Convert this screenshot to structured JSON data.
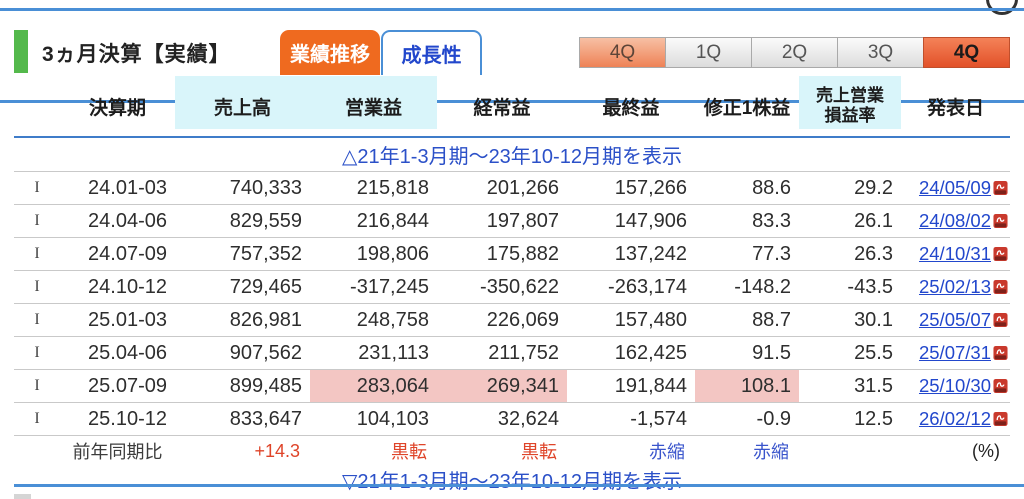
{
  "header": {
    "title": "3ヵ月決算【実績】",
    "tabs": [
      {
        "label": "業績推移",
        "active": true
      },
      {
        "label": "成長性",
        "active": false
      }
    ],
    "quarter_buttons": [
      {
        "label": "4Q",
        "state": "highlight"
      },
      {
        "label": "1Q",
        "state": "normal"
      },
      {
        "label": "2Q",
        "state": "normal"
      },
      {
        "label": "3Q",
        "state": "normal"
      },
      {
        "label": "4Q",
        "state": "selected"
      }
    ]
  },
  "table": {
    "columns": [
      "決算期",
      "売上高",
      "営業益",
      "経常益",
      "最終益",
      "修正1株益",
      "売上営業損益率",
      "発表日"
    ],
    "range_toggle_top": "△21年1-3月期〜23年10-12月期を表示",
    "range_toggle_bottom": "▽21年1-3月期〜23年10-12月期を表示",
    "rows": [
      {
        "marker": "I",
        "period": "24.01-03",
        "sales": "740,333",
        "op": "215,818",
        "ord": "201,266",
        "net": "157,266",
        "eps": "88.6",
        "margin": "29.2",
        "date": "24/05/09",
        "highlight": []
      },
      {
        "marker": "I",
        "period": "24.04-06",
        "sales": "829,559",
        "op": "216,844",
        "ord": "197,807",
        "net": "147,906",
        "eps": "83.3",
        "margin": "26.1",
        "date": "24/08/02",
        "highlight": []
      },
      {
        "marker": "I",
        "period": "24.07-09",
        "sales": "757,352",
        "op": "198,806",
        "ord": "175,882",
        "net": "137,242",
        "eps": "77.3",
        "margin": "26.3",
        "date": "24/10/31",
        "highlight": []
      },
      {
        "marker": "I",
        "period": "24.10-12",
        "sales": "729,465",
        "op": "-317,245",
        "ord": "-350,622",
        "net": "-263,174",
        "eps": "-148.2",
        "margin": "-43.5",
        "date": "25/02/13",
        "highlight": []
      },
      {
        "marker": "I",
        "period": "25.01-03",
        "sales": "826,981",
        "op": "248,758",
        "ord": "226,069",
        "net": "157,480",
        "eps": "88.7",
        "margin": "30.1",
        "date": "25/05/07",
        "highlight": []
      },
      {
        "marker": "I",
        "period": "25.04-06",
        "sales": "907,562",
        "op": "231,113",
        "ord": "211,752",
        "net": "162,425",
        "eps": "91.5",
        "margin": "25.5",
        "date": "25/07/31",
        "highlight": []
      },
      {
        "marker": "I",
        "period": "25.07-09",
        "sales": "899,485",
        "op": "283,064",
        "ord": "269,341",
        "net": "191,844",
        "eps": "108.1",
        "margin": "31.5",
        "date": "25/10/30",
        "highlight": [
          "op",
          "ord",
          "eps"
        ]
      },
      {
        "marker": "I",
        "period": "25.10-12",
        "sales": "833,647",
        "op": "104,103",
        "ord": "32,624",
        "net": "-1,574",
        "eps": "-0.9",
        "margin": "12.5",
        "date": "26/02/12",
        "highlight": []
      }
    ],
    "summary": {
      "label": "前年同期比",
      "sales": "+14.3",
      "op": "黒転",
      "ord": "黒転",
      "net": "赤縮",
      "eps": "赤縮",
      "unit": "(%)"
    }
  },
  "colors": {
    "orange": "#ef6a1f",
    "green": "#54b94c",
    "cyan": "#d9f5fa",
    "pink": "#f3c6c3",
    "blue_line": "#4a8fd6",
    "link_blue": "#2247cc",
    "red": "#df4429"
  }
}
